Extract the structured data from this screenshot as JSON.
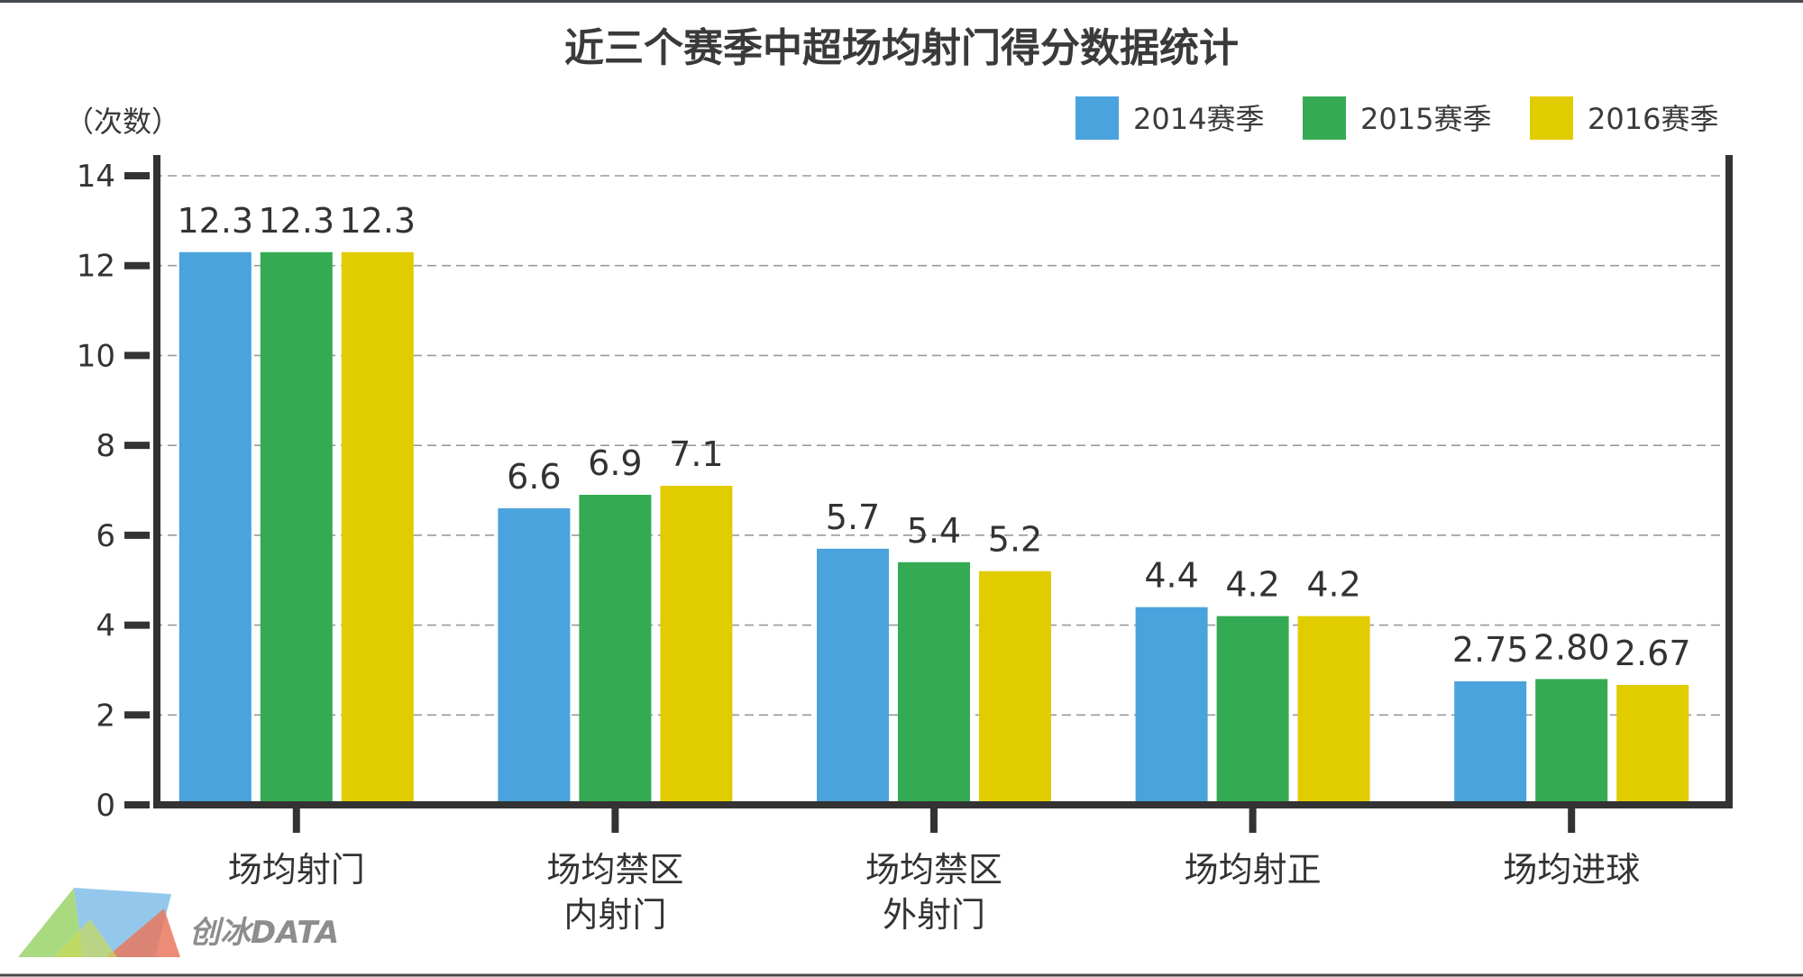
{
  "chart_data": {
    "type": "bar",
    "title": "近三个赛季中超场均射门得分数据统计",
    "ylabel": "（次数）",
    "ylim": [
      0,
      14
    ],
    "yticks": [
      0,
      2,
      4,
      6,
      8,
      10,
      12,
      14
    ],
    "grid": true,
    "legend_position": "top-right",
    "categories": [
      [
        "场均射门"
      ],
      [
        "场均禁区",
        "内射门"
      ],
      [
        "场均禁区",
        "外射门"
      ],
      [
        "场均射正"
      ],
      [
        "场均进球"
      ]
    ],
    "series": [
      {
        "name": "2014赛季",
        "color": "#4aa3dc",
        "values": [
          12.3,
          6.6,
          5.7,
          4.4,
          2.75
        ],
        "labels": [
          "12.3",
          "6.6",
          "5.7",
          "4.4",
          "2.75"
        ]
      },
      {
        "name": "2015赛季",
        "color": "#34ab52",
        "values": [
          12.3,
          6.9,
          5.4,
          4.2,
          2.8
        ],
        "labels": [
          "12.3",
          "6.9",
          "5.4",
          "4.2",
          "2.80"
        ]
      },
      {
        "name": "2016赛季",
        "color": "#e1cc00",
        "values": [
          12.3,
          7.1,
          5.2,
          4.2,
          2.67
        ],
        "labels": [
          "12.3",
          "7.1",
          "5.2",
          "4.2",
          "2.67"
        ]
      }
    ]
  },
  "branding": {
    "logo_text": "创冰DATA",
    "logo_icon": "prism-logo-icon"
  },
  "colors": {
    "frame": "#45494d",
    "axis": "#333333",
    "grid": "#9a9a9a"
  }
}
